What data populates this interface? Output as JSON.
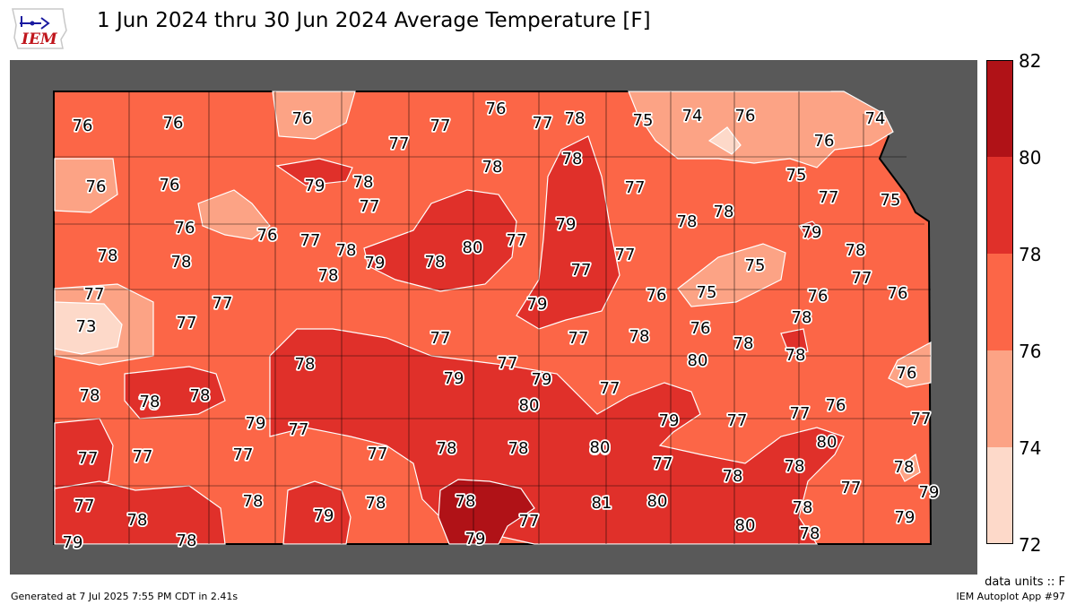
{
  "title": "1 Jun 2024 thru 30 Jun 2024 Average Temperature [F]",
  "logo_text": "IEM",
  "colorbar": {
    "ticks": [
      "82",
      "80",
      "78",
      "76",
      "74",
      "72"
    ],
    "bands": [
      {
        "from": 80,
        "to": 82,
        "color": "#b01217"
      },
      {
        "from": 78,
        "to": 80,
        "color": "#e0302a"
      },
      {
        "from": 76,
        "to": 78,
        "color": "#fc6647"
      },
      {
        "from": 74,
        "to": 76,
        "color": "#fca385"
      },
      {
        "from": 72,
        "to": 74,
        "color": "#fdd9c9"
      }
    ]
  },
  "colors": {
    "outside": "#595959",
    "background": "#fc6647"
  },
  "values": [
    "76",
    "76",
    "76",
    "77",
    "76",
    "77",
    "78",
    "75",
    "74",
    "76",
    "74",
    "77",
    "76",
    "76",
    "76",
    "79",
    "78",
    "77",
    "78",
    "78",
    "77",
    "75",
    "77",
    "75",
    "76",
    "76",
    "77",
    "77",
    "78",
    "79",
    "78",
    "80",
    "77",
    "79",
    "78",
    "78",
    "79",
    "78",
    "78",
    "78",
    "78",
    "77",
    "75",
    "77",
    "75",
    "79",
    "76",
    "76",
    "76",
    "73",
    "77",
    "77",
    "77",
    "77",
    "77",
    "78",
    "76",
    "78",
    "78",
    "78",
    "78",
    "78",
    "78",
    "78",
    "79",
    "77",
    "79",
    "80",
    "77",
    "76",
    "77",
    "79",
    "77",
    "79",
    "77",
    "77",
    "80",
    "78",
    "77",
    "77",
    "77",
    "80",
    "76",
    "78",
    "77",
    "77",
    "77",
    "78",
    "78",
    "80",
    "78",
    "78",
    "79",
    "77",
    "78",
    "78",
    "79",
    "78",
    "78",
    "77",
    "81",
    "80",
    "80",
    "80",
    "78",
    "79",
    "78",
    "79",
    "78",
    "79",
    "78",
    "78",
    "80"
  ],
  "units": "data units :: F",
  "footer": {
    "generated": "Generated at 7 Jul 2025 7:55 PM CDT in 2.41s",
    "app": "IEM Autoplot App #97"
  }
}
